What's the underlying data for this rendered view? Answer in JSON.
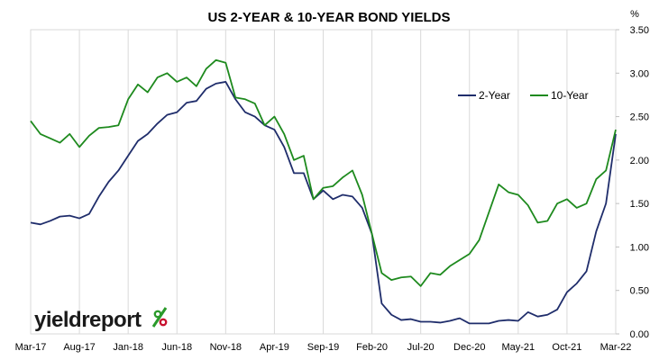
{
  "chart_data": {
    "type": "line",
    "title": "US 2-YEAR & 10-YEAR BOND YIELDS",
    "unit_label": "%",
    "xlabel": "",
    "ylabel": "",
    "ylim": [
      0,
      3.5
    ],
    "y_ticks": [
      "0.00",
      "0.50",
      "1.00",
      "1.50",
      "2.00",
      "2.50",
      "3.00",
      "3.50"
    ],
    "x_tick_labels": [
      "Mar-17",
      "Aug-17",
      "Jan-18",
      "Jun-18",
      "Nov-18",
      "Apr-19",
      "Sep-19",
      "Feb-20",
      "Jul-20",
      "Dec-20",
      "May-21",
      "Oct-21",
      "Mar-22"
    ],
    "grid": "vertical",
    "legend_position": "top-right",
    "x": [
      "2017-03",
      "2017-04",
      "2017-05",
      "2017-06",
      "2017-07",
      "2017-08",
      "2017-09",
      "2017-10",
      "2017-11",
      "2017-12",
      "2018-01",
      "2018-02",
      "2018-03",
      "2018-04",
      "2018-05",
      "2018-06",
      "2018-07",
      "2018-08",
      "2018-09",
      "2018-10",
      "2018-11",
      "2018-12",
      "2019-01",
      "2019-02",
      "2019-03",
      "2019-04",
      "2019-05",
      "2019-06",
      "2019-07",
      "2019-08",
      "2019-09",
      "2019-10",
      "2019-11",
      "2019-12",
      "2020-01",
      "2020-02",
      "2020-03",
      "2020-04",
      "2020-05",
      "2020-06",
      "2020-07",
      "2020-08",
      "2020-09",
      "2020-10",
      "2020-11",
      "2020-12",
      "2021-01",
      "2021-02",
      "2021-03",
      "2021-04",
      "2021-05",
      "2021-06",
      "2021-07",
      "2021-08",
      "2021-09",
      "2021-10",
      "2021-11",
      "2021-12",
      "2022-01",
      "2022-02",
      "2022-03"
    ],
    "series": [
      {
        "name": "2-Year",
        "color": "#1f2d6b",
        "values": [
          1.28,
          1.26,
          1.3,
          1.35,
          1.36,
          1.33,
          1.38,
          1.58,
          1.75,
          1.88,
          2.05,
          2.22,
          2.3,
          2.42,
          2.52,
          2.55,
          2.66,
          2.68,
          2.82,
          2.88,
          2.9,
          2.7,
          2.55,
          2.5,
          2.4,
          2.35,
          2.15,
          1.85,
          1.85,
          1.55,
          1.65,
          1.55,
          1.6,
          1.58,
          1.45,
          1.15,
          0.35,
          0.22,
          0.16,
          0.17,
          0.14,
          0.14,
          0.13,
          0.15,
          0.18,
          0.12,
          0.12,
          0.12,
          0.15,
          0.16,
          0.15,
          0.25,
          0.2,
          0.22,
          0.28,
          0.48,
          0.58,
          0.72,
          1.18,
          1.5,
          2.3
        ]
      },
      {
        "name": "10-Year",
        "color": "#1e8a1e",
        "values": [
          2.45,
          2.3,
          2.25,
          2.2,
          2.3,
          2.15,
          2.28,
          2.37,
          2.38,
          2.4,
          2.7,
          2.87,
          2.78,
          2.95,
          3.0,
          2.9,
          2.95,
          2.85,
          3.05,
          3.15,
          3.12,
          2.72,
          2.7,
          2.65,
          2.4,
          2.5,
          2.3,
          2.0,
          2.05,
          1.55,
          1.68,
          1.7,
          1.8,
          1.88,
          1.6,
          1.15,
          0.7,
          0.62,
          0.65,
          0.66,
          0.55,
          0.7,
          0.68,
          0.78,
          0.85,
          0.92,
          1.08,
          1.4,
          1.72,
          1.63,
          1.6,
          1.48,
          1.28,
          1.3,
          1.5,
          1.55,
          1.45,
          1.5,
          1.78,
          1.88,
          2.35
        ]
      }
    ]
  },
  "logo": {
    "text": "yieldreport",
    "symbol": "%",
    "colors": {
      "text": "#1a1a1a",
      "pct_top": "#2a9a2a",
      "pct_bottom": "#c8102e"
    }
  }
}
